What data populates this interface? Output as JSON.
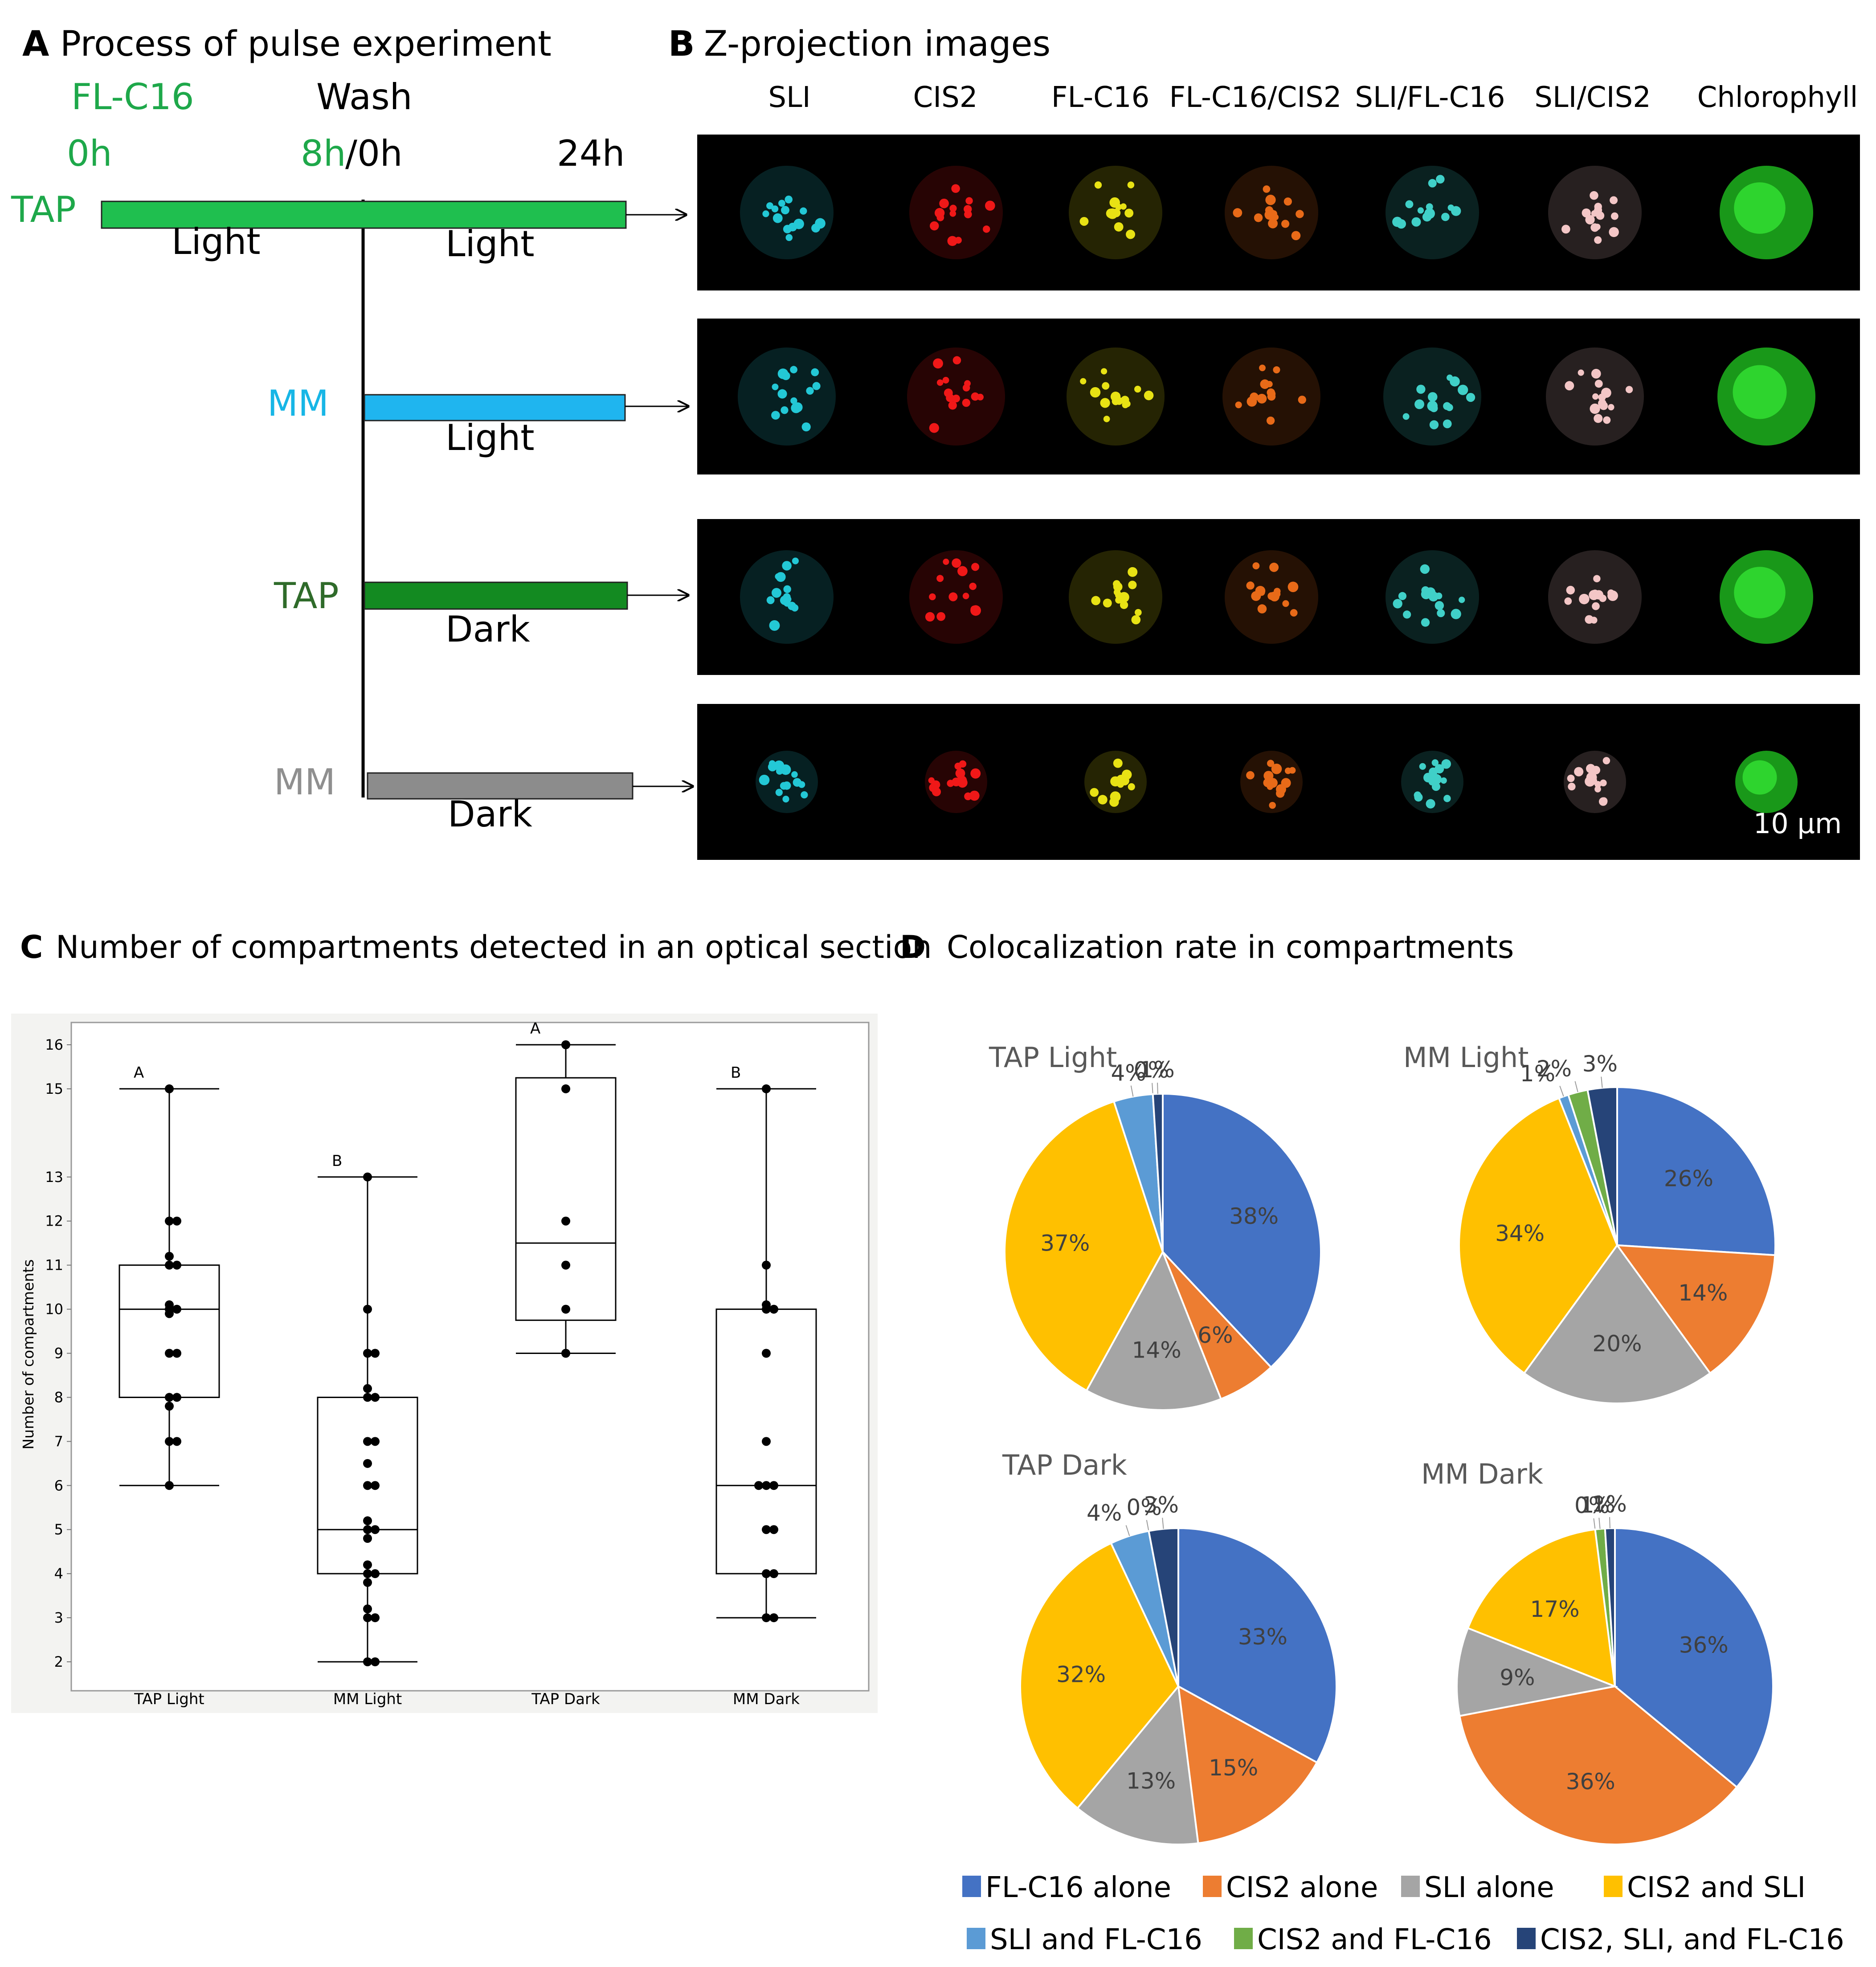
{
  "panel_a": {
    "letter": "A",
    "title": "Process of pulse experiment",
    "compound": "FL-C16",
    "wash": "Wash",
    "t0": "0h",
    "t8": "8h",
    "t8_suffix": "/0h",
    "t24": "24h",
    "rows": [
      {
        "medium": "TAP",
        "color": "#1ea84a",
        "phase1": "Light",
        "phase2": "Light",
        "bar_color": "#1fbf4f"
      },
      {
        "medium": "MM",
        "color": "#17b6e6",
        "phase2": "Light",
        "bar_color": "#1fb5ef"
      },
      {
        "medium": "TAP",
        "color": "#2f6b2a",
        "phase2": "Dark",
        "bar_color": "#138a21"
      },
      {
        "medium": "MM",
        "color": "#8f8f8f",
        "phase2": "Dark",
        "bar_color": "#8c8c8c"
      }
    ]
  },
  "panel_b": {
    "letter": "B",
    "title": "Z-projection images",
    "columns": [
      "SLI",
      "CIS2",
      "FL-C16",
      "FL-C16/CIS2",
      "SLI/FL-C16",
      "SLI/CIS2",
      "Chlorophyll"
    ],
    "scale_bar": "10 µm"
  },
  "panel_c": {
    "letter": "C",
    "title": "Number of compartments detected in an optical section"
  },
  "panel_d": {
    "letter": "D",
    "title": "Colocalization rate in compartments"
  },
  "chart_data": [
    {
      "type": "box",
      "ylabel": "Number of compartments",
      "ylim": [
        1.5,
        16.5
      ],
      "yticks": [
        2,
        3,
        4,
        5,
        6,
        7,
        8,
        9,
        10,
        11,
        12,
        13,
        15,
        16
      ],
      "categories": [
        "TAP Light",
        "MM Light",
        "TAP Dark",
        "MM Dark"
      ],
      "groups": [
        {
          "name": "TAP Light",
          "letter": "A",
          "min": 6,
          "q1": 8,
          "median": 10,
          "q3": 11,
          "max": 15,
          "points": [
            15,
            12,
            12,
            11.2,
            11,
            11,
            10.1,
            10,
            10,
            9.9,
            9,
            9,
            8,
            8,
            7.8,
            7,
            7,
            6
          ]
        },
        {
          "name": "MM Light",
          "letter": "B",
          "min": 2,
          "q1": 4,
          "median": 5,
          "q3": 8,
          "max": 13,
          "points": [
            13,
            10,
            9,
            9,
            8.2,
            8,
            8,
            7,
            7,
            6.5,
            6,
            6,
            5.2,
            5,
            5,
            4.8,
            4.2,
            4,
            4,
            3.8,
            3.2,
            3,
            3,
            2,
            2
          ]
        },
        {
          "name": "TAP Dark",
          "letter": "A",
          "min": 9,
          "q1": 9.75,
          "median": 11.5,
          "q3": 15.25,
          "max": 16,
          "points": [
            16,
            15,
            12,
            11,
            10,
            9
          ]
        },
        {
          "name": "MM Dark",
          "letter": "B",
          "min": 3,
          "q1": 4,
          "median": 6,
          "q3": 10,
          "max": 15,
          "points": [
            15,
            11,
            10.1,
            10,
            10,
            9,
            7,
            6,
            6,
            6,
            5,
            5,
            4,
            4,
            3,
            3
          ]
        }
      ]
    },
    {
      "type": "pie",
      "legend": [
        {
          "label": "FL-C16 alone",
          "color": "#4472c4"
        },
        {
          "label": "CIS2 alone",
          "color": "#ed7d31"
        },
        {
          "label": "SLI alone",
          "color": "#a5a5a5"
        },
        {
          "label": "CIS2 and SLI",
          "color": "#ffc000"
        },
        {
          "label": "SLI and FL-C16",
          "color": "#5b9bd5"
        },
        {
          "label": "CIS2 and FL-C16",
          "color": "#70ad47"
        },
        {
          "label": "CIS2, SLI, and FL-C16",
          "color": "#264478"
        }
      ],
      "pies": [
        {
          "title": "TAP Light",
          "values": [
            38,
            6,
            14,
            37,
            4,
            0,
            1
          ],
          "labels": [
            "38%",
            "6%",
            "14%",
            "37%",
            "4%",
            "0%",
            "1%"
          ]
        },
        {
          "title": "MM Light",
          "values": [
            26,
            14,
            20,
            34,
            1,
            2,
            3
          ],
          "labels": [
            "26%",
            "14%",
            "20%",
            "34%",
            "1%",
            "2%",
            "3%"
          ]
        },
        {
          "title": "TAP Dark",
          "values": [
            33,
            15,
            13,
            32,
            4,
            0,
            3
          ],
          "labels": [
            "33%",
            "15%",
            "13%",
            "32%",
            "4%",
            "0%",
            "3%"
          ]
        },
        {
          "title": "MM Dark",
          "values": [
            36,
            36,
            9,
            17,
            0,
            1,
            1
          ],
          "labels": [
            "36%",
            "36%",
            "9%",
            "17%",
            "0%",
            "1%",
            "1%"
          ]
        }
      ]
    }
  ]
}
